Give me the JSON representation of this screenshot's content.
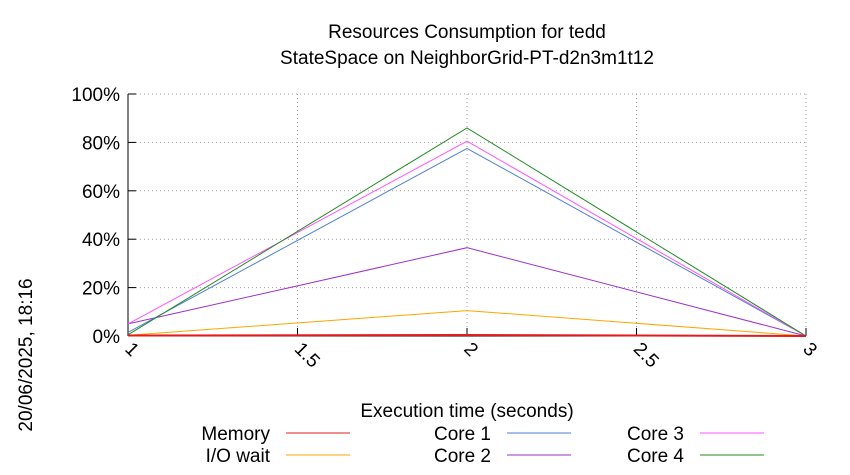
{
  "chart_data": {
    "type": "line",
    "title_lines": [
      "Resources Consumption for tedd",
      "StateSpace on NeighborGrid-PT-d2n3m1t12"
    ],
    "xlabel": "Execution time (seconds)",
    "ylabel": "",
    "side_label": "20/06/2025, 18:16",
    "xlim": [
      1,
      3
    ],
    "ylim": [
      0,
      100
    ],
    "x_ticks": [
      1,
      1.5,
      2,
      2.5,
      3
    ],
    "x_tick_labels": [
      "1",
      "1.5",
      "2",
      "2.5",
      "3"
    ],
    "y_ticks": [
      0,
      20,
      40,
      60,
      80,
      100
    ],
    "y_tick_labels": [
      "0%",
      "20%",
      "40%",
      "60%",
      "80%",
      "100%"
    ],
    "grid": true,
    "legend_position": "bottom",
    "x": [
      1,
      2,
      3
    ],
    "series": [
      {
        "name": "Memory",
        "color": "#e41a1c",
        "values": [
          0.2,
          0.4,
          0.0
        ]
      },
      {
        "name": "I/O wait",
        "color": "#ffa500",
        "values": [
          0.3,
          10.5,
          0.0
        ]
      },
      {
        "name": "Core 1",
        "color": "#4f7fd0",
        "values": [
          1.5,
          77.5,
          0.0
        ]
      },
      {
        "name": "Core 2",
        "color": "#9932cc",
        "values": [
          5.0,
          36.5,
          0.0
        ]
      },
      {
        "name": "Core 3",
        "color": "#ff55ff",
        "values": [
          5.0,
          80.5,
          0.0
        ]
      },
      {
        "name": "Core 4",
        "color": "#228b22",
        "values": [
          0.5,
          86.0,
          0.0
        ]
      }
    ]
  }
}
